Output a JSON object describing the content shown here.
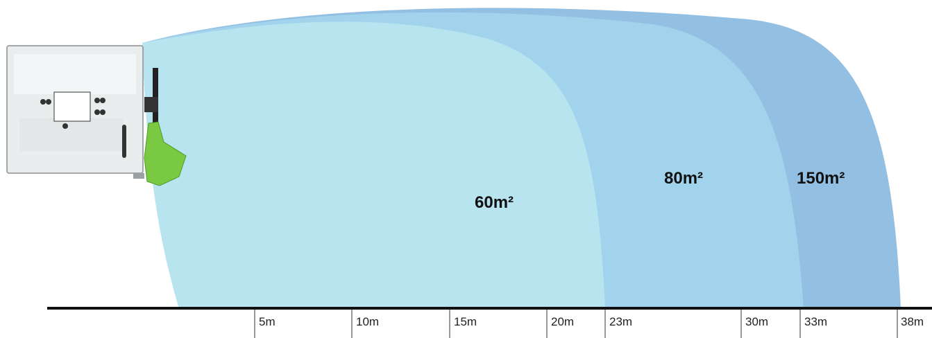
{
  "zones": [
    {
      "label": "60m²",
      "reach_m": 23,
      "color": "#b8e4f0"
    },
    {
      "label": "80m²",
      "reach_m": 33,
      "color": "#a2d3ec"
    },
    {
      "label": "150m²",
      "reach_m": 38,
      "color": "#93bfe3"
    }
  ],
  "axis": {
    "ticks": [
      {
        "value": 5,
        "label": "5m"
      },
      {
        "value": 10,
        "label": "10m"
      },
      {
        "value": 15,
        "label": "15m"
      },
      {
        "value": 20,
        "label": "20m"
      },
      {
        "value": 23,
        "label": "23m"
      },
      {
        "value": 30,
        "label": "30m"
      },
      {
        "value": 33,
        "label": "33m"
      },
      {
        "value": 38,
        "label": "38m"
      }
    ],
    "color": "#111111"
  },
  "device": {
    "housing_color": "#e9eded",
    "nozzle_color": "#7ac943"
  }
}
